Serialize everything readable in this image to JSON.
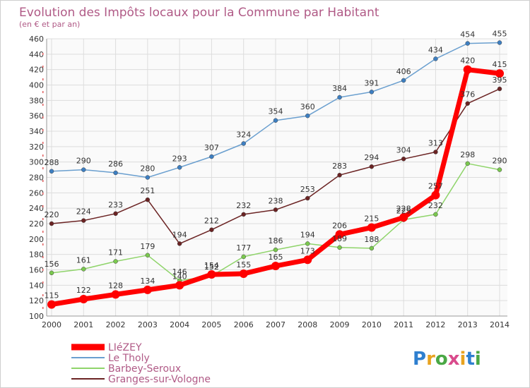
{
  "chart_data": {
    "type": "line",
    "title": "Evolution des Impôts locaux pour la Commune par Habitant",
    "subtitle": "(en € et par an)",
    "x": [
      "2000",
      "2001",
      "2002",
      "2003",
      "2004",
      "2005",
      "2006",
      "2007",
      "2008",
      "2009",
      "2010",
      "2011",
      "2012",
      "2013",
      "2014"
    ],
    "yticks": [
      "100",
      "120",
      "140",
      "160",
      "180",
      "200",
      "220",
      "240",
      "260",
      "280",
      "300",
      "320",
      "340",
      "360",
      "380",
      "400",
      "420",
      "440",
      "460"
    ],
    "ylim": [
      100,
      460
    ],
    "grid": true,
    "series": [
      {
        "name": "Le Tholy",
        "color": "#6a9fcf",
        "marker": "#3d7fc2",
        "values": [
          288,
          290,
          286,
          280,
          293,
          307,
          324,
          354,
          360,
          384,
          391,
          406,
          434,
          454,
          455
        ],
        "labels": [
          "288",
          "290",
          "286",
          "280",
          "293",
          "307",
          "324",
          "354",
          "360",
          "384",
          "391",
          "406",
          "434",
          "454",
          "455"
        ]
      },
      {
        "name": "Granges-sur-Vologne",
        "color": "#6b2323",
        "marker": "#6b2323",
        "values": [
          220,
          224,
          233,
          251,
          194,
          212,
          232,
          238,
          253,
          283,
          294,
          304,
          313,
          376,
          395
        ],
        "labels": [
          "220",
          "224",
          "233",
          "251",
          "194",
          "212",
          "232",
          "238",
          "253",
          "283",
          "294",
          "304",
          "313",
          "376",
          "395"
        ]
      },
      {
        "name": "Barbey-Seroux",
        "color": "#8fd46a",
        "marker": "#7ac84e",
        "values": [
          156,
          161,
          171,
          179,
          146,
          152,
          177,
          186,
          194,
          189,
          188,
          225,
          232,
          298,
          290
        ],
        "labels": [
          "156",
          "161",
          "171",
          "179",
          "146",
          "152",
          "177",
          "186",
          "194",
          "189",
          "188",
          "225",
          "232",
          "298",
          "290"
        ]
      },
      {
        "name": "LIéZEY",
        "color": "#ff0000",
        "marker": "#ff0000",
        "values": [
          115,
          122,
          128,
          134,
          140,
          154,
          155,
          165,
          173,
          206,
          215,
          228,
          257,
          420,
          415
        ],
        "labels": [
          "115",
          "122",
          "128",
          "134",
          "140",
          "154",
          "155",
          "165",
          "173",
          "206",
          "215",
          "228",
          "257",
          "420",
          "415"
        ]
      }
    ],
    "legend": [
      "LIéZEY",
      "Le Tholy",
      "Barbey-Seroux",
      "Granges-sur-Vologne"
    ],
    "legend_position": "bottom-left"
  },
  "branding": {
    "logo_text": "Proxiti"
  }
}
